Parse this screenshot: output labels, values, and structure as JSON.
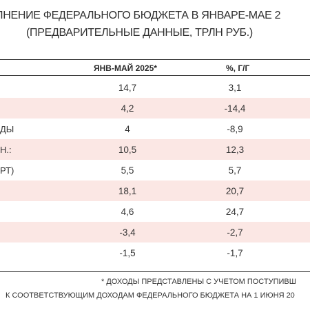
{
  "title": {
    "line1": "ЛНЕНИЕ ФЕДЕРАЛЬНОГО БЮДЖЕТА В ЯНВАРЕ-МАЕ 2",
    "line2": "(ПРЕДВАРИТЕЛЬНЫЕ ДАННЫЕ, ТРЛН РУБ.)"
  },
  "table": {
    "headers": [
      "ЯНВ-МАЙ 2025*",
      "%, Г/Г"
    ],
    "rows": [
      {
        "label": "",
        "jan_may_2025": "14,7",
        "yoy": "3,1",
        "shaded": false
      },
      {
        "label": "",
        "jan_may_2025": "4,2",
        "yoy": "-14,4",
        "shaded": true
      },
      {
        "label": "ДЫ",
        "jan_may_2025": "4",
        "yoy": "-8,9",
        "shaded": false
      },
      {
        "label": "Н.:",
        "jan_may_2025": "10,5",
        "yoy": "12,3",
        "shaded": true
      },
      {
        "label": "РТ)",
        "jan_may_2025": "5,5",
        "yoy": "5,7",
        "shaded": false
      },
      {
        "label": "",
        "jan_may_2025": "18,1",
        "yoy": "20,7",
        "shaded": true
      },
      {
        "label": "",
        "jan_may_2025": "4,6",
        "yoy": "24,7",
        "shaded": false
      },
      {
        "label": "",
        "jan_may_2025": "-3,4",
        "yoy": "-2,7",
        "shaded": true
      },
      {
        "label": "",
        "jan_may_2025": "-1,5",
        "yoy": "-1,7",
        "shaded": false
      }
    ]
  },
  "footnote": {
    "line1": "* ДОХОДЫ ПРЕДСТАВЛЕНЫ С УЧЕТОМ ПОСТУПИВШ",
    "line2": "К СООТВЕТСТВУЮЩИМ ДОХОДАМ ФЕДЕРАЛЬНОГО БЮДЖЕТА НА 1 ИЮНЯ 20"
  }
}
